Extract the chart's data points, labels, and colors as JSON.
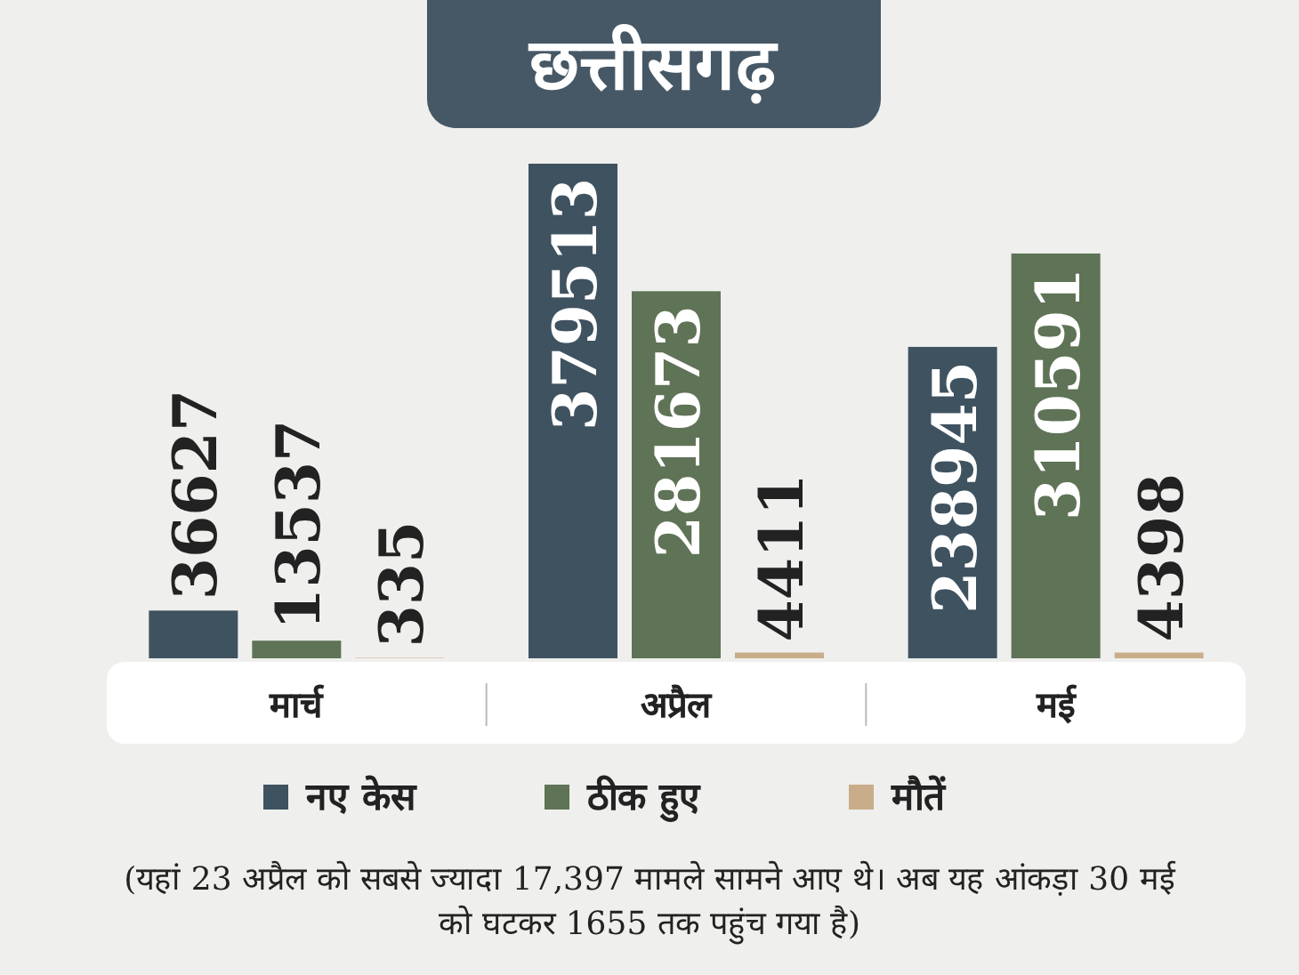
{
  "chart_data": {
    "type": "bar",
    "title": "छत्तीसगढ़",
    "categories": [
      "मार्च",
      "अप्रैल",
      "मई"
    ],
    "series": [
      {
        "name": "नए केस",
        "color": "#3f5260",
        "values": [
          36627,
          379513,
          238945
        ]
      },
      {
        "name": "ठीक हुए",
        "color": "#5f7356",
        "values": [
          13537,
          281673,
          310591
        ]
      },
      {
        "name": "मौतें",
        "color": "#c9ad8a",
        "values": [
          335,
          4411,
          4398
        ]
      }
    ],
    "data_labels": true,
    "legend": "bottom",
    "annotations": [
      "(यहां 23 अप्रैल को सबसे ज्यादा 17,397 मामले सामने आए थे। अब यह आंकड़ा 30 मई को घटकर 1655 तक पहुंच गया है)"
    ]
  }
}
